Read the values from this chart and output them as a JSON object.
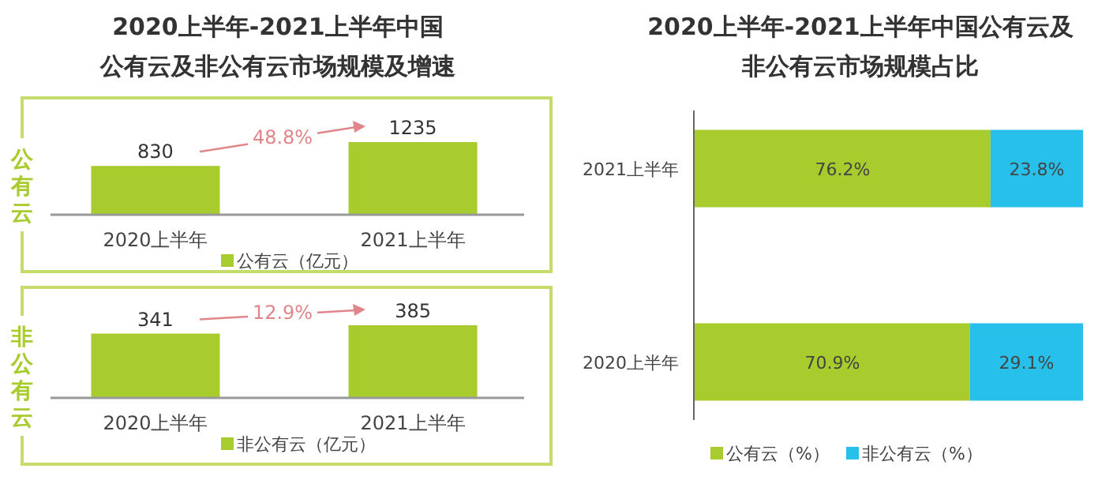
{
  "chart_data": [
    {
      "type": "bar",
      "title": "2020上半年-2021上半年中国公有云及非公有云市场规模及增速",
      "ylabel": "公有云",
      "categories": [
        "2020上半年",
        "2021上半年"
      ],
      "series": [
        {
          "name": "公有云（亿元）",
          "color": "#a8cb2d",
          "values": [
            830,
            1235
          ]
        }
      ],
      "data_labels": true,
      "legend": "bottom",
      "annotations": [
        "48.8%"
      ]
    },
    {
      "type": "bar",
      "ylabel": "非公有云",
      "categories": [
        "2020上半年",
        "2021上半年"
      ],
      "series": [
        {
          "name": "非公有云（亿元）",
          "color": "#a8cb2d",
          "values": [
            341,
            385
          ]
        }
      ],
      "data_labels": true,
      "legend": "bottom",
      "annotations": [
        "12.9%"
      ]
    },
    {
      "type": "bar",
      "title": "2020上半年-2021上半年中国公有云及非公有云市场规模占比",
      "orientation": "horizontal",
      "stacked": true,
      "categories": [
        "2021上半年",
        "2020上半年"
      ],
      "xlim": [
        0,
        100
      ],
      "tick_labels": "y",
      "series": [
        {
          "name": "公有云（%）",
          "color": "#a8cb2d",
          "values": [
            76.2,
            70.9
          ],
          "value_labels": [
            "76.2%",
            "70.9%"
          ]
        },
        {
          "name": "非公有云（%）",
          "color": "#27c0ea",
          "values": [
            23.8,
            29.1
          ],
          "value_labels": [
            "23.8%",
            "29.1%"
          ]
        }
      ],
      "legend": "bottom"
    }
  ]
}
